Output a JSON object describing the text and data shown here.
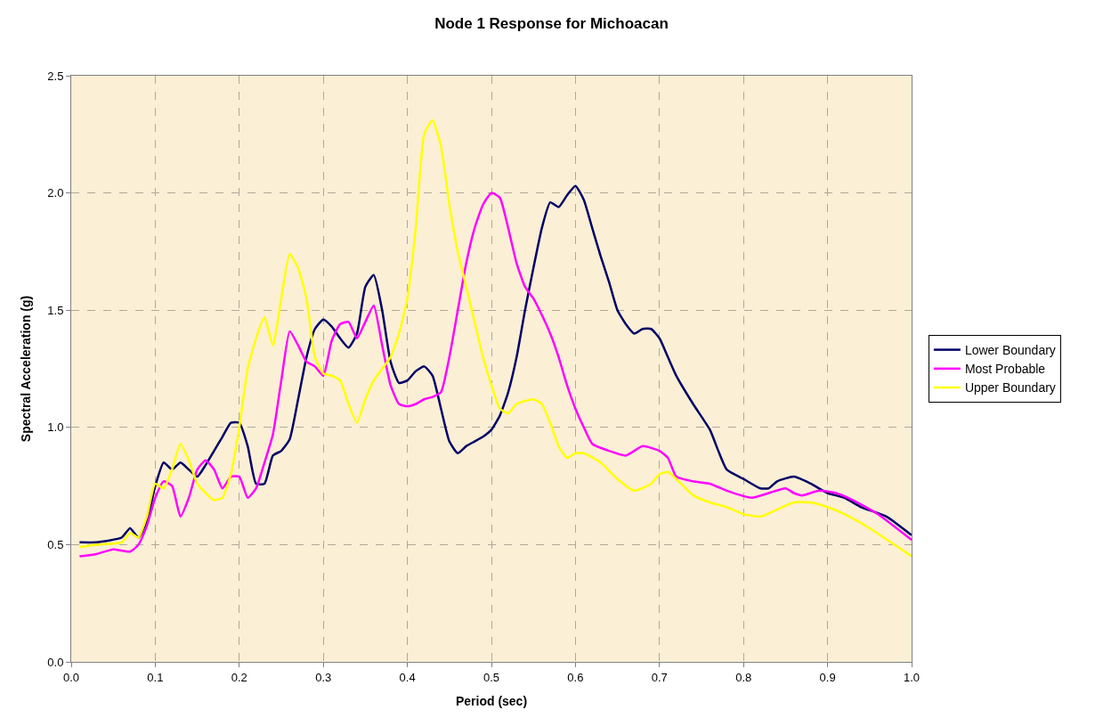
{
  "chart_data": {
    "type": "line",
    "title": "Node 1 Response for Michoacan",
    "xlabel": "Period (sec)",
    "ylabel": "Spectral Acceleration (g)",
    "xlim": [
      0,
      1
    ],
    "ylim": [
      0,
      2.5
    ],
    "xticks": [
      {
        "value": 0,
        "label": "0.0"
      },
      0.1,
      0.2,
      0.3,
      0.4,
      0.5,
      0.6,
      0.7,
      0.8,
      0.9,
      {
        "value": 1,
        "label": "1.0"
      }
    ],
    "yticks": [
      {
        "value": 0,
        "label": "0.0"
      },
      0.5,
      {
        "value": 1,
        "label": "1.0"
      },
      1.5,
      {
        "value": 2,
        "label": "2.0"
      },
      2.5
    ],
    "grid": true,
    "legend": "right",
    "line_style": "solid",
    "marker": "none",
    "series": [
      {
        "name": "Lower Boundary",
        "color": "#000066",
        "x": [
          0.01,
          0.03,
          0.06,
          0.07,
          0.08,
          0.09,
          0.1,
          0.11,
          0.12,
          0.13,
          0.14,
          0.15,
          0.16,
          0.17,
          0.18,
          0.19,
          0.2,
          0.21,
          0.22,
          0.23,
          0.24,
          0.25,
          0.26,
          0.27,
          0.28,
          0.29,
          0.3,
          0.31,
          0.32,
          0.33,
          0.34,
          0.35,
          0.36,
          0.37,
          0.38,
          0.39,
          0.4,
          0.41,
          0.42,
          0.43,
          0.44,
          0.45,
          0.46,
          0.47,
          0.48,
          0.49,
          0.5,
          0.51,
          0.52,
          0.53,
          0.54,
          0.55,
          0.56,
          0.57,
          0.58,
          0.59,
          0.6,
          0.61,
          0.62,
          0.63,
          0.64,
          0.65,
          0.66,
          0.67,
          0.68,
          0.69,
          0.7,
          0.71,
          0.72,
          0.74,
          0.76,
          0.77,
          0.78,
          0.8,
          0.82,
          0.83,
          0.84,
          0.86,
          0.88,
          0.9,
          0.92,
          0.94,
          0.97,
          1.0
        ],
        "values": [
          0.51,
          0.51,
          0.53,
          0.57,
          0.53,
          0.6,
          0.75,
          0.85,
          0.82,
          0.85,
          0.82,
          0.79,
          0.84,
          0.9,
          0.96,
          1.02,
          1.02,
          0.92,
          0.76,
          0.76,
          0.88,
          0.9,
          0.95,
          1.12,
          1.3,
          1.42,
          1.46,
          1.43,
          1.38,
          1.34,
          1.4,
          1.6,
          1.65,
          1.5,
          1.28,
          1.19,
          1.2,
          1.24,
          1.26,
          1.22,
          1.08,
          0.94,
          0.89,
          0.92,
          0.94,
          0.96,
          0.99,
          1.05,
          1.15,
          1.3,
          1.5,
          1.68,
          1.85,
          1.96,
          1.94,
          1.99,
          2.03,
          1.97,
          1.85,
          1.73,
          1.62,
          1.5,
          1.44,
          1.4,
          1.42,
          1.42,
          1.38,
          1.3,
          1.22,
          1.1,
          0.99,
          0.9,
          0.82,
          0.78,
          0.74,
          0.74,
          0.77,
          0.79,
          0.76,
          0.72,
          0.7,
          0.66,
          0.62,
          0.54
        ]
      },
      {
        "name": "Most Probable",
        "color": "#ff00ff",
        "x": [
          0.01,
          0.03,
          0.05,
          0.07,
          0.08,
          0.09,
          0.1,
          0.11,
          0.12,
          0.13,
          0.14,
          0.15,
          0.16,
          0.17,
          0.18,
          0.19,
          0.2,
          0.21,
          0.22,
          0.23,
          0.24,
          0.25,
          0.26,
          0.27,
          0.28,
          0.29,
          0.3,
          0.31,
          0.32,
          0.33,
          0.34,
          0.35,
          0.36,
          0.37,
          0.38,
          0.39,
          0.4,
          0.41,
          0.42,
          0.43,
          0.44,
          0.45,
          0.46,
          0.47,
          0.48,
          0.49,
          0.5,
          0.51,
          0.52,
          0.53,
          0.54,
          0.55,
          0.56,
          0.57,
          0.58,
          0.59,
          0.6,
          0.61,
          0.62,
          0.64,
          0.66,
          0.68,
          0.7,
          0.71,
          0.72,
          0.74,
          0.76,
          0.78,
          0.81,
          0.83,
          0.85,
          0.86,
          0.87,
          0.89,
          0.91,
          0.93,
          0.96,
          1.0
        ],
        "values": [
          0.45,
          0.46,
          0.48,
          0.47,
          0.5,
          0.58,
          0.7,
          0.77,
          0.75,
          0.62,
          0.7,
          0.82,
          0.86,
          0.82,
          0.74,
          0.79,
          0.79,
          0.7,
          0.74,
          0.85,
          0.97,
          1.2,
          1.41,
          1.35,
          1.28,
          1.26,
          1.22,
          1.37,
          1.44,
          1.45,
          1.38,
          1.45,
          1.52,
          1.35,
          1.18,
          1.1,
          1.09,
          1.1,
          1.12,
          1.13,
          1.15,
          1.3,
          1.5,
          1.7,
          1.85,
          1.95,
          2.0,
          1.98,
          1.85,
          1.7,
          1.6,
          1.55,
          1.48,
          1.4,
          1.3,
          1.18,
          1.08,
          1.0,
          0.93,
          0.9,
          0.88,
          0.92,
          0.9,
          0.87,
          0.79,
          0.77,
          0.76,
          0.73,
          0.7,
          0.72,
          0.74,
          0.72,
          0.71,
          0.73,
          0.72,
          0.69,
          0.63,
          0.52
        ]
      },
      {
        "name": "Upper Boundary",
        "color": "#ffff00",
        "x": [
          0.01,
          0.03,
          0.06,
          0.07,
          0.08,
          0.09,
          0.1,
          0.11,
          0.12,
          0.13,
          0.14,
          0.15,
          0.16,
          0.17,
          0.18,
          0.19,
          0.2,
          0.21,
          0.22,
          0.23,
          0.24,
          0.25,
          0.26,
          0.27,
          0.28,
          0.29,
          0.3,
          0.31,
          0.32,
          0.33,
          0.34,
          0.35,
          0.36,
          0.37,
          0.38,
          0.39,
          0.4,
          0.41,
          0.42,
          0.43,
          0.44,
          0.45,
          0.46,
          0.47,
          0.48,
          0.49,
          0.5,
          0.51,
          0.52,
          0.53,
          0.55,
          0.56,
          0.57,
          0.58,
          0.59,
          0.6,
          0.61,
          0.63,
          0.65,
          0.67,
          0.69,
          0.7,
          0.71,
          0.72,
          0.74,
          0.76,
          0.78,
          0.8,
          0.82,
          0.84,
          0.86,
          0.88,
          0.9,
          0.92,
          0.95,
          1.0
        ],
        "values": [
          0.49,
          0.5,
          0.51,
          0.55,
          0.53,
          0.62,
          0.76,
          0.74,
          0.82,
          0.93,
          0.86,
          0.76,
          0.72,
          0.69,
          0.7,
          0.8,
          1.0,
          1.25,
          1.38,
          1.47,
          1.35,
          1.55,
          1.74,
          1.68,
          1.55,
          1.3,
          1.23,
          1.22,
          1.2,
          1.1,
          1.02,
          1.12,
          1.2,
          1.25,
          1.3,
          1.4,
          1.55,
          1.85,
          2.25,
          2.31,
          2.2,
          1.95,
          1.75,
          1.6,
          1.45,
          1.3,
          1.18,
          1.08,
          1.06,
          1.1,
          1.12,
          1.1,
          1.02,
          0.92,
          0.87,
          0.89,
          0.89,
          0.85,
          0.78,
          0.73,
          0.76,
          0.8,
          0.81,
          0.78,
          0.71,
          0.68,
          0.66,
          0.63,
          0.62,
          0.65,
          0.68,
          0.68,
          0.66,
          0.63,
          0.57,
          0.45
        ]
      }
    ]
  }
}
